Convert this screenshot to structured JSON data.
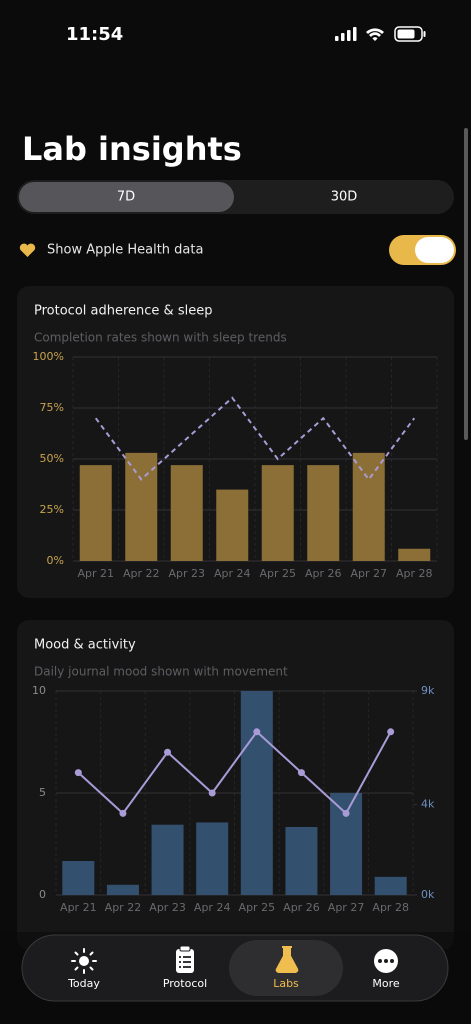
{
  "status_bar": {
    "time": "11:54"
  },
  "header": {
    "title": "Lab insights"
  },
  "segmented": {
    "options": [
      "7D",
      "30D"
    ],
    "selected": 0
  },
  "toggle": {
    "label": "Show Apple Health data",
    "on": true
  },
  "chart_data": [
    {
      "type": "bar",
      "title": "Protocol adherence & sleep",
      "subtitle": "Completion rates shown with sleep trends",
      "categories": [
        "Apr 21",
        "Apr 22",
        "Apr 23",
        "Apr 24",
        "Apr 25",
        "Apr 26",
        "Apr 27",
        "Apr 28"
      ],
      "ylim": [
        0,
        100
      ],
      "yticks": [
        {
          "value": 0,
          "label": "0%"
        },
        {
          "value": 25,
          "label": "25%"
        },
        {
          "value": 50,
          "label": "50%"
        },
        {
          "value": 75,
          "label": "75%"
        },
        {
          "value": 100,
          "label": "100%"
        }
      ],
      "grid": true,
      "series": [
        {
          "type": "bar",
          "color": "#8c6f36",
          "values": [
            47,
            53,
            47,
            35,
            47,
            47,
            53,
            6
          ]
        },
        {
          "type": "line",
          "dashed": true,
          "color": "#a99bd6",
          "values": [
            70,
            40,
            60,
            80,
            50,
            70,
            40,
            70
          ]
        }
      ]
    },
    {
      "type": "bar",
      "title": "Mood & activity",
      "subtitle": "Daily journal mood shown with movement",
      "categories": [
        "Apr 21",
        "Apr 22",
        "Apr 23",
        "Apr 24",
        "Apr 25",
        "Apr 26",
        "Apr 27",
        "Apr 28"
      ],
      "ylim": [
        0,
        10
      ],
      "yticks": [
        0,
        5,
        10
      ],
      "y2lim": [
        0,
        9000
      ],
      "y2ticks": [
        {
          "value": 0,
          "label": "0k"
        },
        {
          "value": 4000,
          "label": "4k"
        },
        {
          "value": 9000,
          "label": "9k"
        }
      ],
      "grid": true,
      "series": [
        {
          "type": "bar",
          "axis": "y2",
          "color": "#34506f",
          "values": [
            1500,
            450,
            3100,
            3200,
            9000,
            3000,
            4500,
            800
          ]
        },
        {
          "type": "line",
          "markers": true,
          "color": "#a99bd6",
          "values": [
            6,
            4,
            7,
            5,
            8,
            6,
            4,
            8
          ]
        }
      ]
    }
  ],
  "tab_bar": {
    "tabs": [
      "Today",
      "Protocol",
      "Labs",
      "More"
    ],
    "active": 2
  }
}
